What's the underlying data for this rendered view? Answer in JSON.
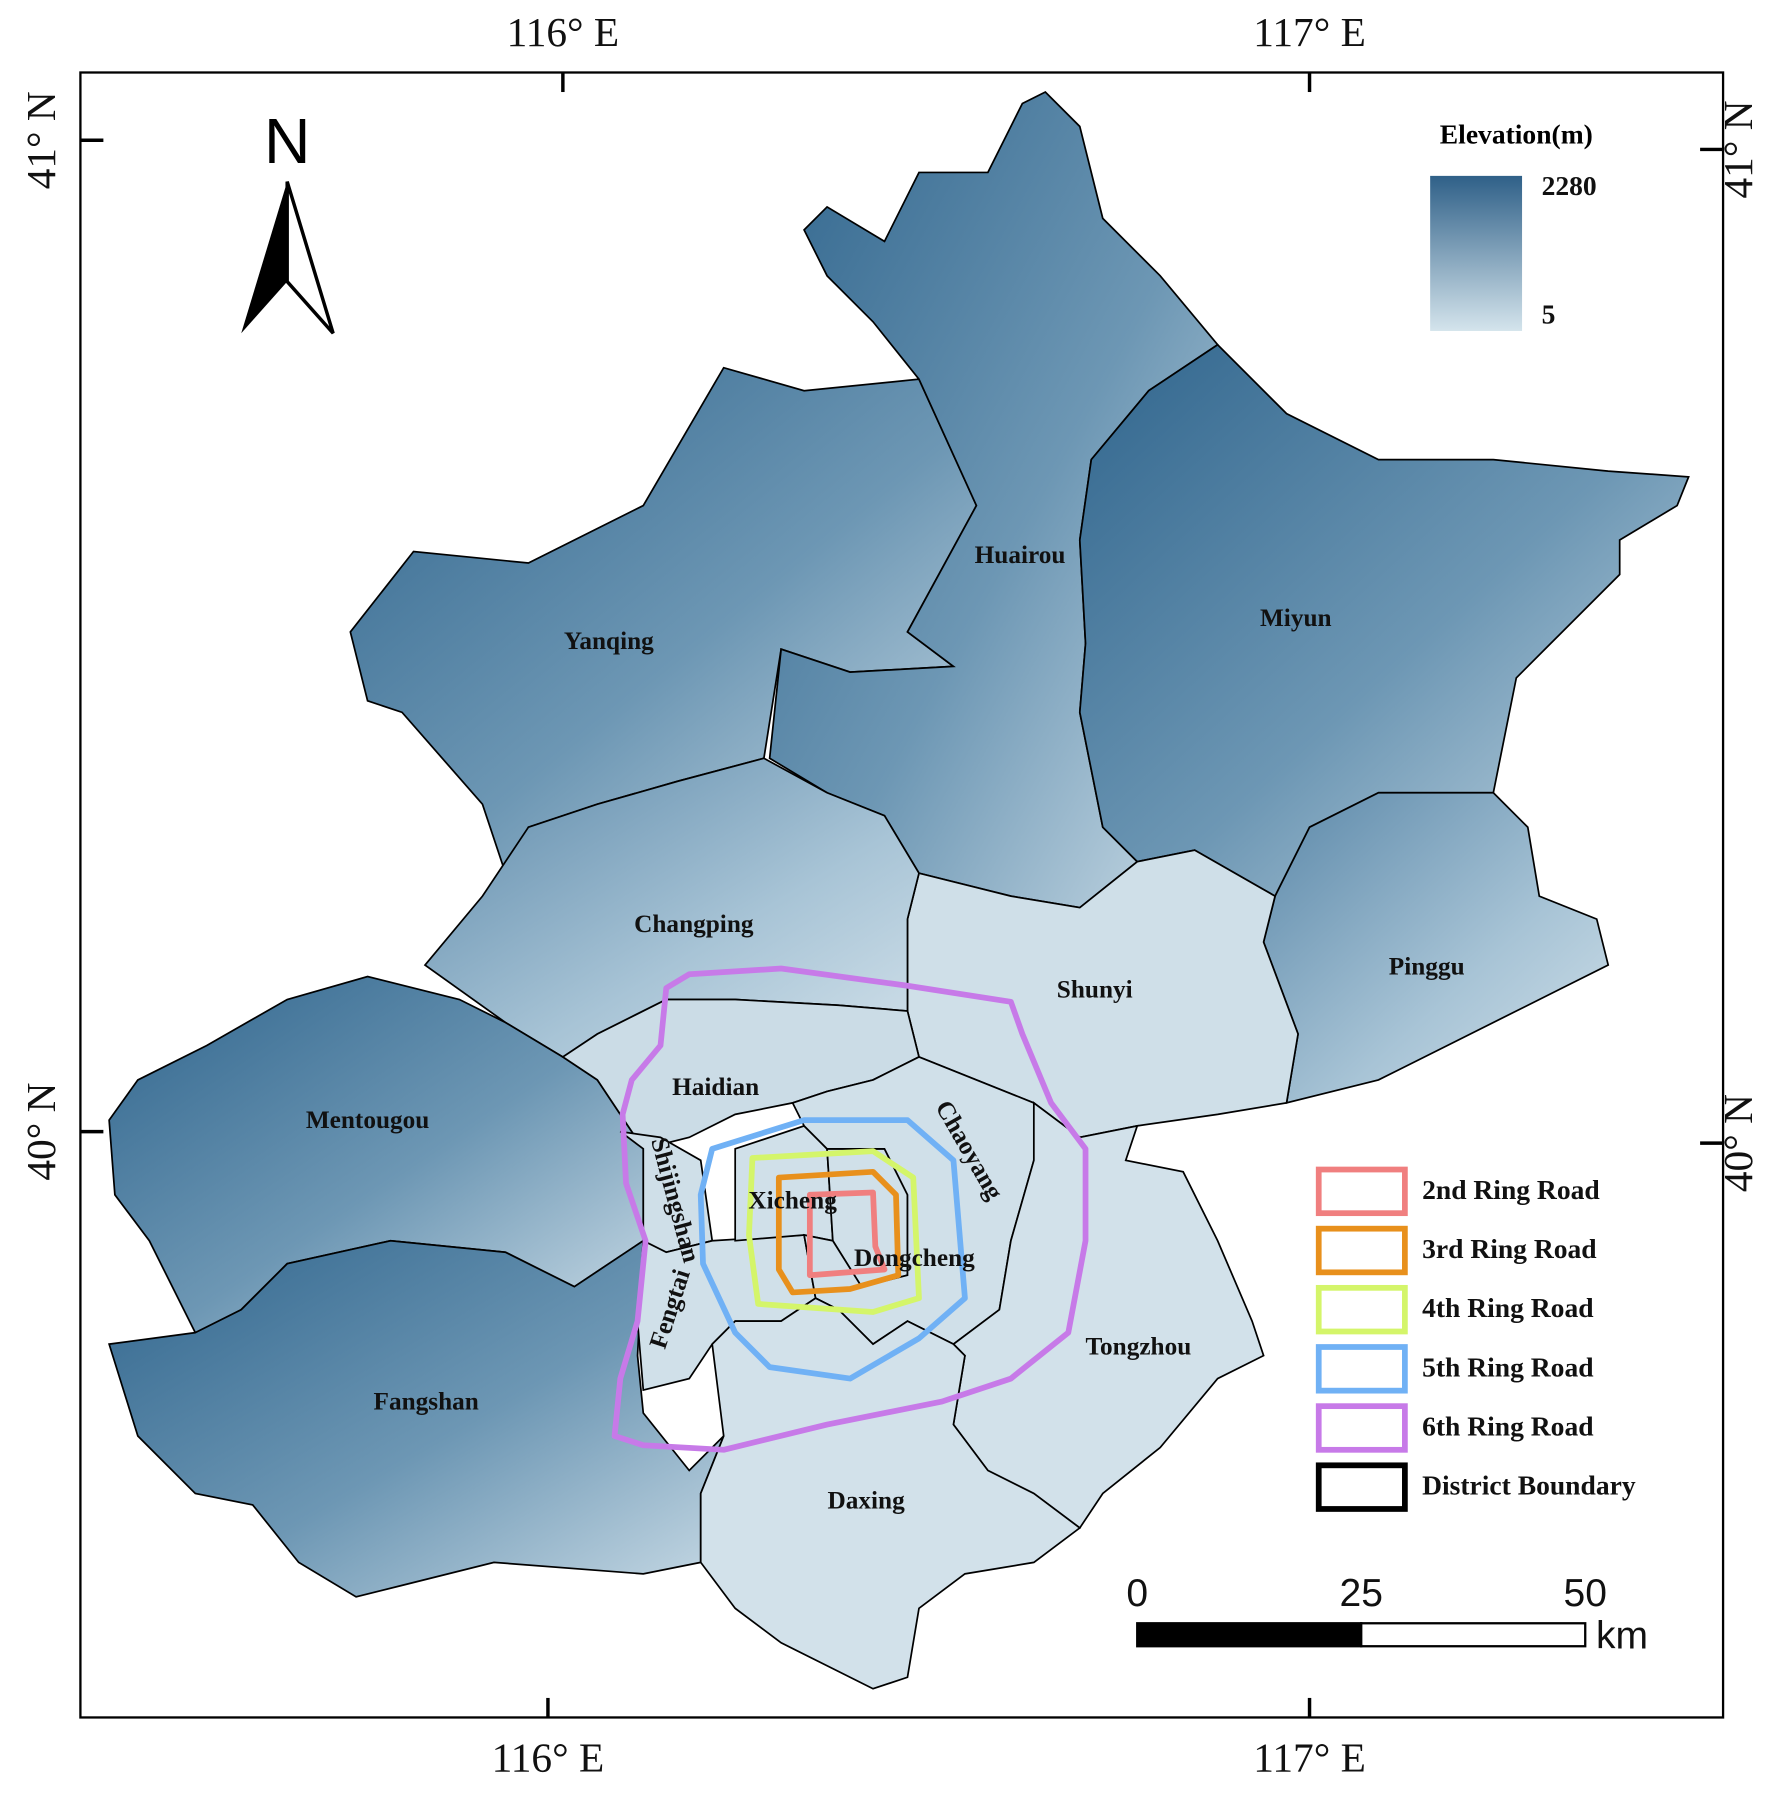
{
  "axes": {
    "top": [
      "116° E",
      "117° E"
    ],
    "bottom": [
      "116° E",
      "117° E"
    ],
    "left": [
      "41° N",
      "40° N"
    ],
    "right": [
      "41° N",
      "40° N"
    ]
  },
  "north": "N",
  "elevation_legend": {
    "title": "Elevation(m)",
    "max": "2280",
    "min": "5"
  },
  "districts": [
    "Yanqing",
    "Huairou",
    "Miyun",
    "Pinggu",
    "Shunyi",
    "Changping",
    "Mentougou",
    "Fangshan",
    "Haidian",
    "Shijingshan",
    "Fengtai",
    "Xicheng",
    "Dongcheng",
    "Chaoyang",
    "Tongzhou",
    "Daxing"
  ],
  "legend": [
    {
      "label": "2nd Ring Road",
      "color": "#f07f7f"
    },
    {
      "label": "3rd Ring Road",
      "color": "#e8901c"
    },
    {
      "label": "4th Ring Road",
      "color": "#d4f56a"
    },
    {
      "label": "5th Ring Road",
      "color": "#70b1f5"
    },
    {
      "label": "6th Ring Road",
      "color": "#c77ae8"
    },
    {
      "label": "District Boundary",
      "color": "#000000"
    }
  ],
  "scale_bar": {
    "ticks": [
      "0",
      "25",
      "50"
    ],
    "unit": "km"
  }
}
